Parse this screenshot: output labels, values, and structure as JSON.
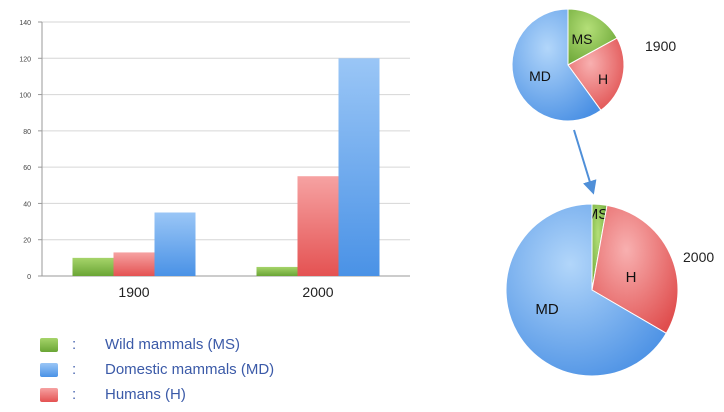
{
  "colors": {
    "wild": "#7cb642",
    "domestic": "#5aa0ee",
    "humans": "#f07070",
    "legend_text": "#3b5aa8",
    "arrow": "#4f8fd8"
  },
  "chart_data": [
    {
      "type": "bar",
      "categories": [
        "1900",
        "2000"
      ],
      "series": [
        {
          "name": "Wild mammals (MS)",
          "values": [
            10,
            5
          ]
        },
        {
          "name": "Humans (H)",
          "values": [
            13,
            55
          ]
        },
        {
          "name": "Domestic mammals (MD)",
          "values": [
            35,
            120
          ]
        }
      ],
      "y_ticks": [
        "0",
        "20",
        "40",
        "60",
        "80",
        "100",
        "120",
        "140"
      ],
      "ylim": [
        0,
        140
      ],
      "grid": true
    },
    {
      "type": "pie",
      "year_label": "1900",
      "slices": [
        {
          "label": "MS",
          "value": 17
        },
        {
          "label": "H",
          "value": 23
        },
        {
          "label": "MD",
          "value": 60
        }
      ]
    },
    {
      "type": "pie",
      "year_label": "2000",
      "slices": [
        {
          "label": "MS",
          "value": 2.8
        },
        {
          "label": "H",
          "value": 30.6
        },
        {
          "label": "MD",
          "value": 66.6
        }
      ]
    }
  ],
  "legend": [
    {
      "label": "Wild mammals (MS)",
      "colon": ":",
      "color": "#7cb642"
    },
    {
      "label": "Domestic mammals (MD)",
      "colon": ":",
      "color": "#5aa0ee"
    },
    {
      "label": "Humans (H)",
      "colon": ":",
      "color": "#f07070"
    }
  ]
}
